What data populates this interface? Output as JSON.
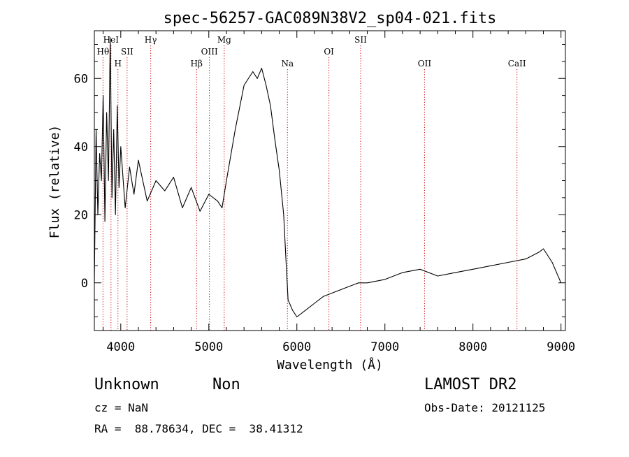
{
  "chart_data": {
    "type": "line",
    "title": "spec-56257-GAC089N38V2_sp04-021.fits",
    "xlabel": "Wavelength (Å)",
    "ylabel": "Flux (relative)",
    "xlim": [
      3700,
      9050
    ],
    "ylim": [
      -14,
      74
    ],
    "xticks": [
      4000,
      5000,
      6000,
      7000,
      8000,
      9000
    ],
    "yticks": [
      0,
      20,
      40,
      60
    ],
    "grid": false,
    "series_color": "#000000",
    "line_marker_color": "#cc0000",
    "spectral_lines": [
      {
        "label": "Hθ",
        "wavelength": 3798,
        "row": 3
      },
      {
        "label": "HeI",
        "wavelength": 3889,
        "row": 1
      },
      {
        "label": "H",
        "wavelength": 3968,
        "row": 4
      },
      {
        "label": "SII",
        "wavelength": 4072,
        "row": 3
      },
      {
        "label": "Hγ",
        "wavelength": 4340,
        "row": 1
      },
      {
        "label": "Hβ",
        "wavelength": 4861,
        "row": 4
      },
      {
        "label": "OIII",
        "wavelength": 5007,
        "row": 3
      },
      {
        "label": "Mg",
        "wavelength": 5175,
        "row": 1
      },
      {
        "label": "Na",
        "wavelength": 5893,
        "row": 4
      },
      {
        "label": "OI",
        "wavelength": 6364,
        "row": 3
      },
      {
        "label": "SII",
        "wavelength": 6724,
        "row": 1
      },
      {
        "label": "OII",
        "wavelength": 7450,
        "row": 4
      },
      {
        "label": "CaII",
        "wavelength": 8500,
        "row": 4
      }
    ],
    "series": [
      {
        "x": [
          3700,
          3720,
          3740,
          3760,
          3780,
          3800,
          3820,
          3840,
          3860,
          3880,
          3900,
          3920,
          3940,
          3960,
          3980,
          4000,
          4050,
          4100,
          4150,
          4200,
          4300,
          4400,
          4500,
          4600,
          4700,
          4800,
          4900,
          5000,
          5100,
          5150,
          5200,
          5300,
          5400,
          5500,
          5550,
          5600,
          5650,
          5700,
          5750,
          5800,
          5850,
          5880,
          5900,
          5950,
          6000,
          6100,
          6200,
          6300,
          6400,
          6500,
          6600,
          6700,
          6800,
          7000,
          7200,
          7400,
          7600,
          7800,
          8000,
          8200,
          8400,
          8600,
          8750,
          8800,
          8900,
          9000
        ],
        "y": [
          0,
          45,
          20,
          38,
          30,
          55,
          18,
          50,
          30,
          72,
          25,
          45,
          20,
          52,
          28,
          40,
          22,
          34,
          26,
          36,
          24,
          30,
          27,
          31,
          22,
          28,
          21,
          26,
          24,
          22,
          30,
          45,
          58,
          62,
          60,
          63,
          58,
          52,
          42,
          33,
          20,
          5,
          -5,
          -8,
          -10,
          -8,
          -6,
          -4,
          -3,
          -2,
          -1,
          0,
          0,
          1,
          3,
          4,
          2,
          3,
          4,
          5,
          6,
          7,
          9,
          10,
          6,
          0
        ]
      }
    ]
  },
  "footer": {
    "object_type": "Unknown",
    "object_subclass": "Non",
    "redshift": "cz = NaN",
    "coords": "RA =  88.78634, DEC =  38.41312",
    "survey": "LAMOST DR2",
    "obs_date": "Obs-Date: 20121125"
  }
}
